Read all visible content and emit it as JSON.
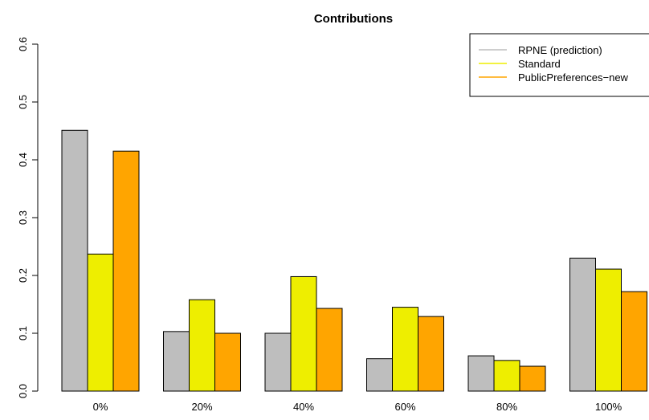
{
  "chart_data": {
    "type": "bar",
    "title": "Contributions",
    "xlabel": "",
    "ylabel": "",
    "categories": [
      "0%",
      "20%",
      "40%",
      "60%",
      "80%",
      "100%"
    ],
    "series": [
      {
        "name": "RPNE (prediction)",
        "color": "#bebebe",
        "values": [
          0.451,
          0.103,
          0.1,
          0.056,
          0.061,
          0.23
        ]
      },
      {
        "name": "Standard",
        "color": "#eeee00",
        "values": [
          0.237,
          0.158,
          0.198,
          0.145,
          0.053,
          0.211
        ]
      },
      {
        "name": "PublicPreferences−new",
        "color": "#ffa500",
        "values": [
          0.415,
          0.1,
          0.143,
          0.129,
          0.043,
          0.172
        ]
      }
    ],
    "yticks": [
      "0.0",
      "0.1",
      "0.2",
      "0.3",
      "0.4",
      "0.5",
      "0.6"
    ],
    "ylim": [
      0,
      0.6
    ],
    "grid": false,
    "legend_position": "top-right"
  }
}
